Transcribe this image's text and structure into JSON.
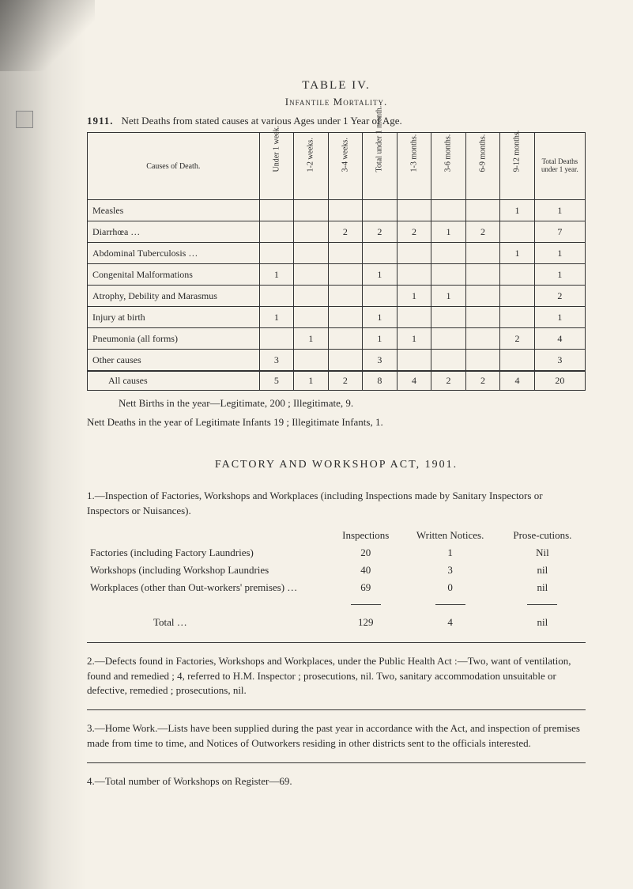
{
  "table_heading": "TABLE  IV.",
  "table_subtitle": "Infantile Mortality.",
  "year": "1911.",
  "year_caption": "Nett Deaths from stated causes at various Ages under 1 Year of Age.",
  "mortality_table": {
    "columns": [
      "Causes of Death.",
      "Under 1 week.",
      "1-2 weeks.",
      "3-4 weeks.",
      "Total under 1 month.",
      "1-3 months.",
      "3-6 months.",
      "6-9 months.",
      "9-12 months.",
      "Total Deaths under 1 year."
    ],
    "rows": [
      {
        "cause": "Measles",
        "c": [
          "",
          "",
          "",
          "",
          "",
          "",
          "",
          "1",
          "1"
        ]
      },
      {
        "cause": "Diarrhœa  …",
        "c": [
          "",
          "",
          "2",
          "2",
          "2",
          "1",
          "2",
          "",
          "7"
        ]
      },
      {
        "cause": "Abdominal Tuberculosis  …",
        "c": [
          "",
          "",
          "",
          "",
          "",
          "",
          "",
          "1",
          "1"
        ]
      },
      {
        "cause": "Congenital Malformations",
        "c": [
          "1",
          "",
          "",
          "1",
          "",
          "",
          "",
          "",
          "1"
        ]
      },
      {
        "cause": "Atrophy, Debility and Marasmus",
        "c": [
          "",
          "",
          "",
          "",
          "1",
          "1",
          "",
          "",
          "2"
        ]
      },
      {
        "cause": "Injury at birth",
        "c": [
          "1",
          "",
          "",
          "1",
          "",
          "",
          "",
          "",
          "1"
        ]
      },
      {
        "cause": "Pneumonia (all forms)",
        "c": [
          "",
          "1",
          "",
          "1",
          "1",
          "",
          "",
          "2",
          "4"
        ]
      },
      {
        "cause": "Other causes",
        "c": [
          "3",
          "",
          "",
          "3",
          "",
          "",
          "",
          "",
          "3"
        ]
      }
    ],
    "total": {
      "cause": "All causes",
      "c": [
        "5",
        "1",
        "2",
        "8",
        "4",
        "2",
        "2",
        "4",
        "20"
      ]
    }
  },
  "nett_births_line_1": "Nett Births in the year—Legitimate, 200 ;  Illegitimate, 9.",
  "nett_births_line_2": "Nett Deaths in the year of Legitimate Infants 19 ;  Illegitimate Infants, 1.",
  "factory_title": "FACTORY  AND  WORKSHOP  ACT,  1901.",
  "inspection_para_lead": "1.—Inspection of Factories, Workshops and Workplaces (including Inspections made by Sanitary Inspectors or Inspectors or Nuisances).",
  "inspections_table": {
    "headers": [
      "",
      "Inspections",
      "Written Notices.",
      "Prose-cutions."
    ],
    "rows": [
      {
        "label": "Factories  (including  Factory Laundries)",
        "vals": [
          "20",
          "1",
          "Nil"
        ]
      },
      {
        "label": "Workshops (including Workshop Laundries",
        "vals": [
          "40",
          "3",
          "nil"
        ]
      },
      {
        "label": "Workplaces  (other  than  Out-workers'  premises) …",
        "vals": [
          "69",
          "0",
          "nil"
        ]
      }
    ],
    "total": {
      "label": "Total",
      "vals": [
        "129",
        "4",
        "nil"
      ]
    }
  },
  "para2": "2.—Defects found in Factories, Workshops and Workplaces, under the Public Health Act :—Two, want of ventilation, found and remedied ; 4, referred to H.M. Inspector ; prosecutions, nil. Two, sanitary accommodation unsuitable or defective, remedied ; prosecutions, nil.",
  "para3": "3.—Home Work.—Lists have been supplied during the past year in accordance with the Act, and inspection of premises made from time to time, and Notices of Outworkers residing in other districts sent to the officials interested.",
  "para4": "4.—Total number of Workshops on Register—69."
}
